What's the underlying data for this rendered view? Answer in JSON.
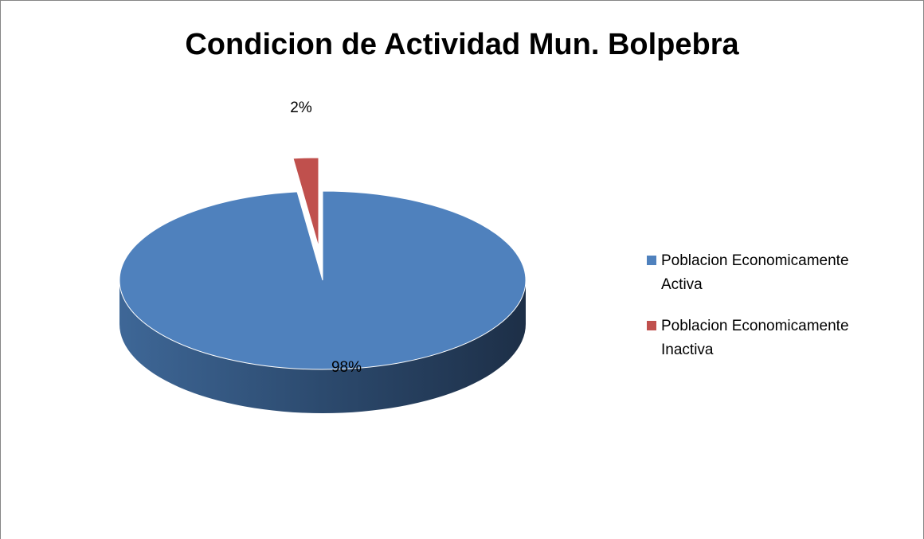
{
  "chart_data": {
    "type": "pie",
    "title": "Condicion de Actividad Mun. Bolpebra",
    "categories": [
      "Poblacion Economicamente Activa",
      "Poblacion Economicamente Inactiva"
    ],
    "values": [
      98,
      2
    ],
    "value_labels": [
      "98%",
      "2%"
    ],
    "colors": [
      "#4f81bd",
      "#c0504d"
    ],
    "legend": "right"
  }
}
